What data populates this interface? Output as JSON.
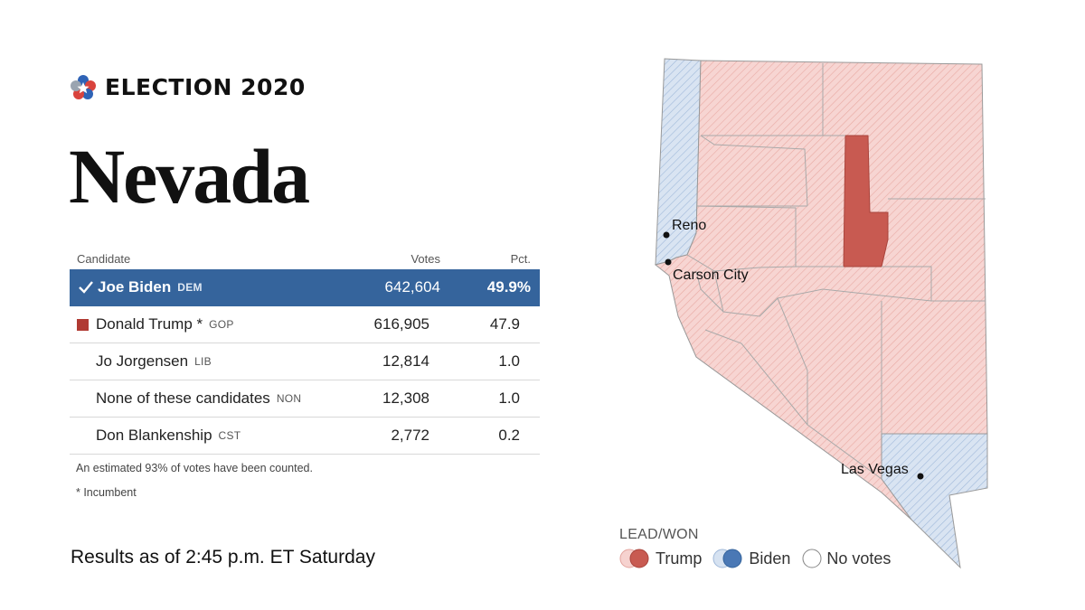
{
  "header": {
    "brand": "ELECTION 2020",
    "title": "Nevada"
  },
  "table": {
    "columns": {
      "candidate": "Candidate",
      "votes": "Votes",
      "pct": "Pct."
    },
    "rows": [
      {
        "name": "Joe Biden",
        "party": "DEM",
        "votes": "642,604",
        "pct": "49.9%",
        "winner": true
      },
      {
        "name": "Donald Trump *",
        "party": "GOP",
        "votes": "616,905",
        "pct": "47.9",
        "leader_mark": true
      },
      {
        "name": "Jo Jorgensen",
        "party": "LIB",
        "votes": "12,814",
        "pct": "1.0"
      },
      {
        "name": "None of these candidates",
        "party": "NON",
        "votes": "12,308",
        "pct": "1.0"
      },
      {
        "name": "Don Blankenship",
        "party": "CST",
        "votes": "2,772",
        "pct": "0.2"
      }
    ],
    "note_counted": "An estimated 93% of votes have been counted.",
    "note_incumbent": "* Incumbent"
  },
  "results_as_of": "Results as of 2:45 p.m. ET Saturday",
  "map": {
    "cities": {
      "reno": "Reno",
      "carson_city": "Carson City",
      "las_vegas": "Las Vegas"
    },
    "legend_title": "LEAD/WON",
    "legend": {
      "trump": "Trump",
      "biden": "Biden",
      "no_votes": "No votes"
    }
  },
  "colors": {
    "biden_won": "#35649c",
    "trump_won": "#c0413b",
    "trump_lead": "#f6d2cf",
    "biden_lead": "#d6e2f1",
    "trump_solid": "#c85a51"
  }
}
